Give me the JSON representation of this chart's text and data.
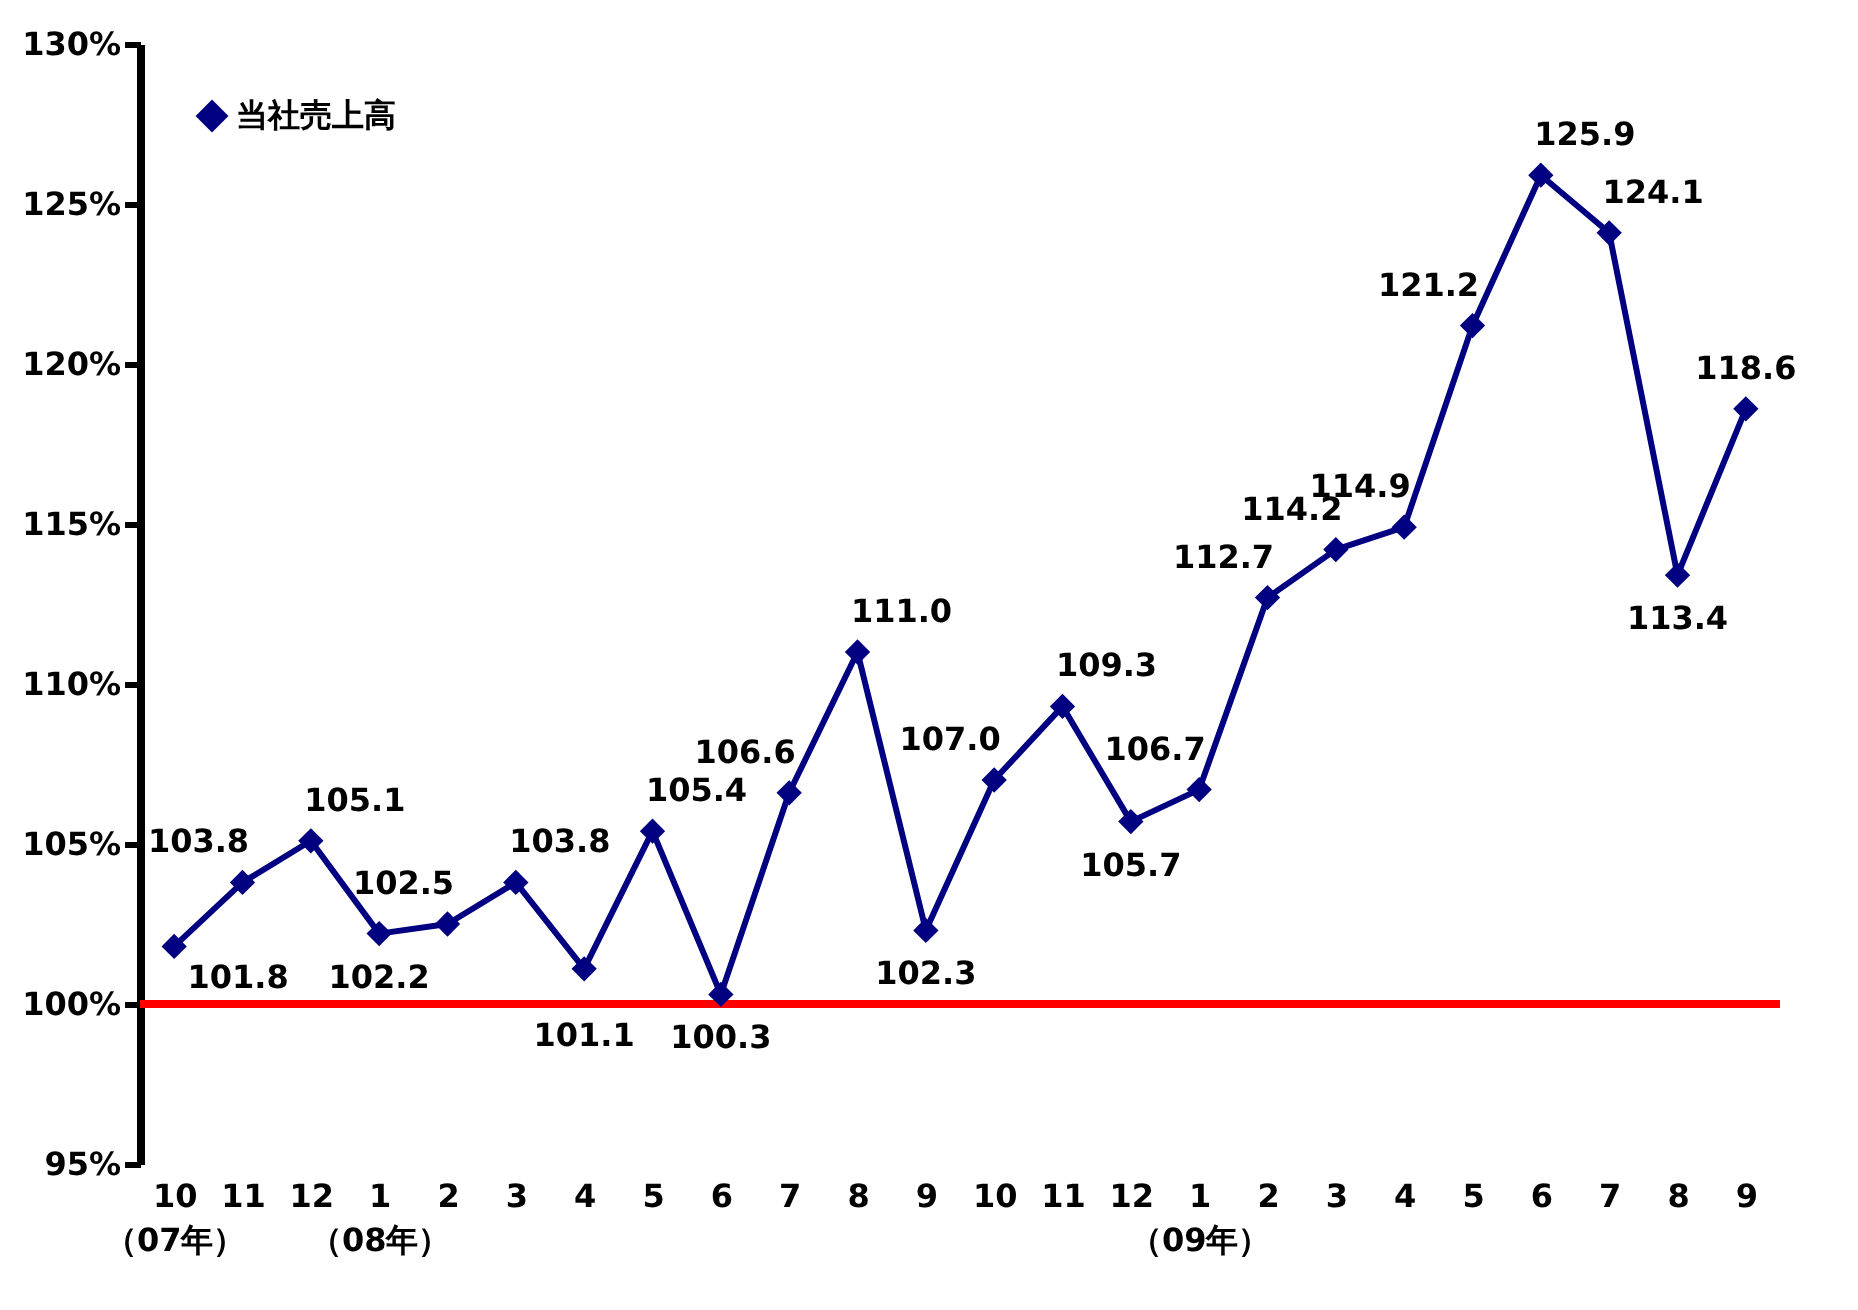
{
  "chart_data": {
    "type": "line",
    "categories": [
      "10\n（07年）",
      "11",
      "12",
      "1\n（08年）",
      "2",
      "3",
      "4",
      "5",
      "6",
      "7",
      "8",
      "9",
      "10",
      "11",
      "12",
      "1\n（09年）",
      "2",
      "3",
      "4",
      "5",
      "6",
      "7",
      "8",
      "9"
    ],
    "series": [
      {
        "name": "当社売上高",
        "color": "#000080",
        "values": [
          101.8,
          103.8,
          105.1,
          102.2,
          102.5,
          103.8,
          101.1,
          105.4,
          100.3,
          106.6,
          111.0,
          102.3,
          107.0,
          109.3,
          105.7,
          106.7,
          112.7,
          114.2,
          114.9,
          121.2,
          125.9,
          124.1,
          113.4,
          118.6
        ]
      }
    ],
    "ylim": [
      95,
      130
    ],
    "yticks": [
      {
        "value": 95,
        "label": "95%"
      },
      {
        "value": 100,
        "label": "100%"
      },
      {
        "value": 105,
        "label": "105%"
      },
      {
        "value": 110,
        "label": "110%"
      },
      {
        "value": 115,
        "label": "115%"
      },
      {
        "value": 120,
        "label": "120%"
      },
      {
        "value": 125,
        "label": "125%"
      },
      {
        "value": 130,
        "label": "130%"
      }
    ],
    "ref_lines": [
      {
        "axis": "y",
        "value": 100,
        "color": "#ff0000"
      }
    ],
    "value_labels": [
      "101.8",
      "103.8",
      "105.1",
      "102.2",
      "102.5",
      "103.8",
      "101.1",
      "105.4",
      "100.3",
      "106.6",
      "111.0",
      "102.3",
      "107.0",
      "109.3",
      "105.7",
      "106.7",
      "112.7",
      "114.2",
      "114.9",
      "121.2",
      "125.9",
      "124.1",
      "113.4",
      "118.6"
    ],
    "legend": "top left",
    "marker": "diamond",
    "line_style": "solid",
    "grid": false
  }
}
